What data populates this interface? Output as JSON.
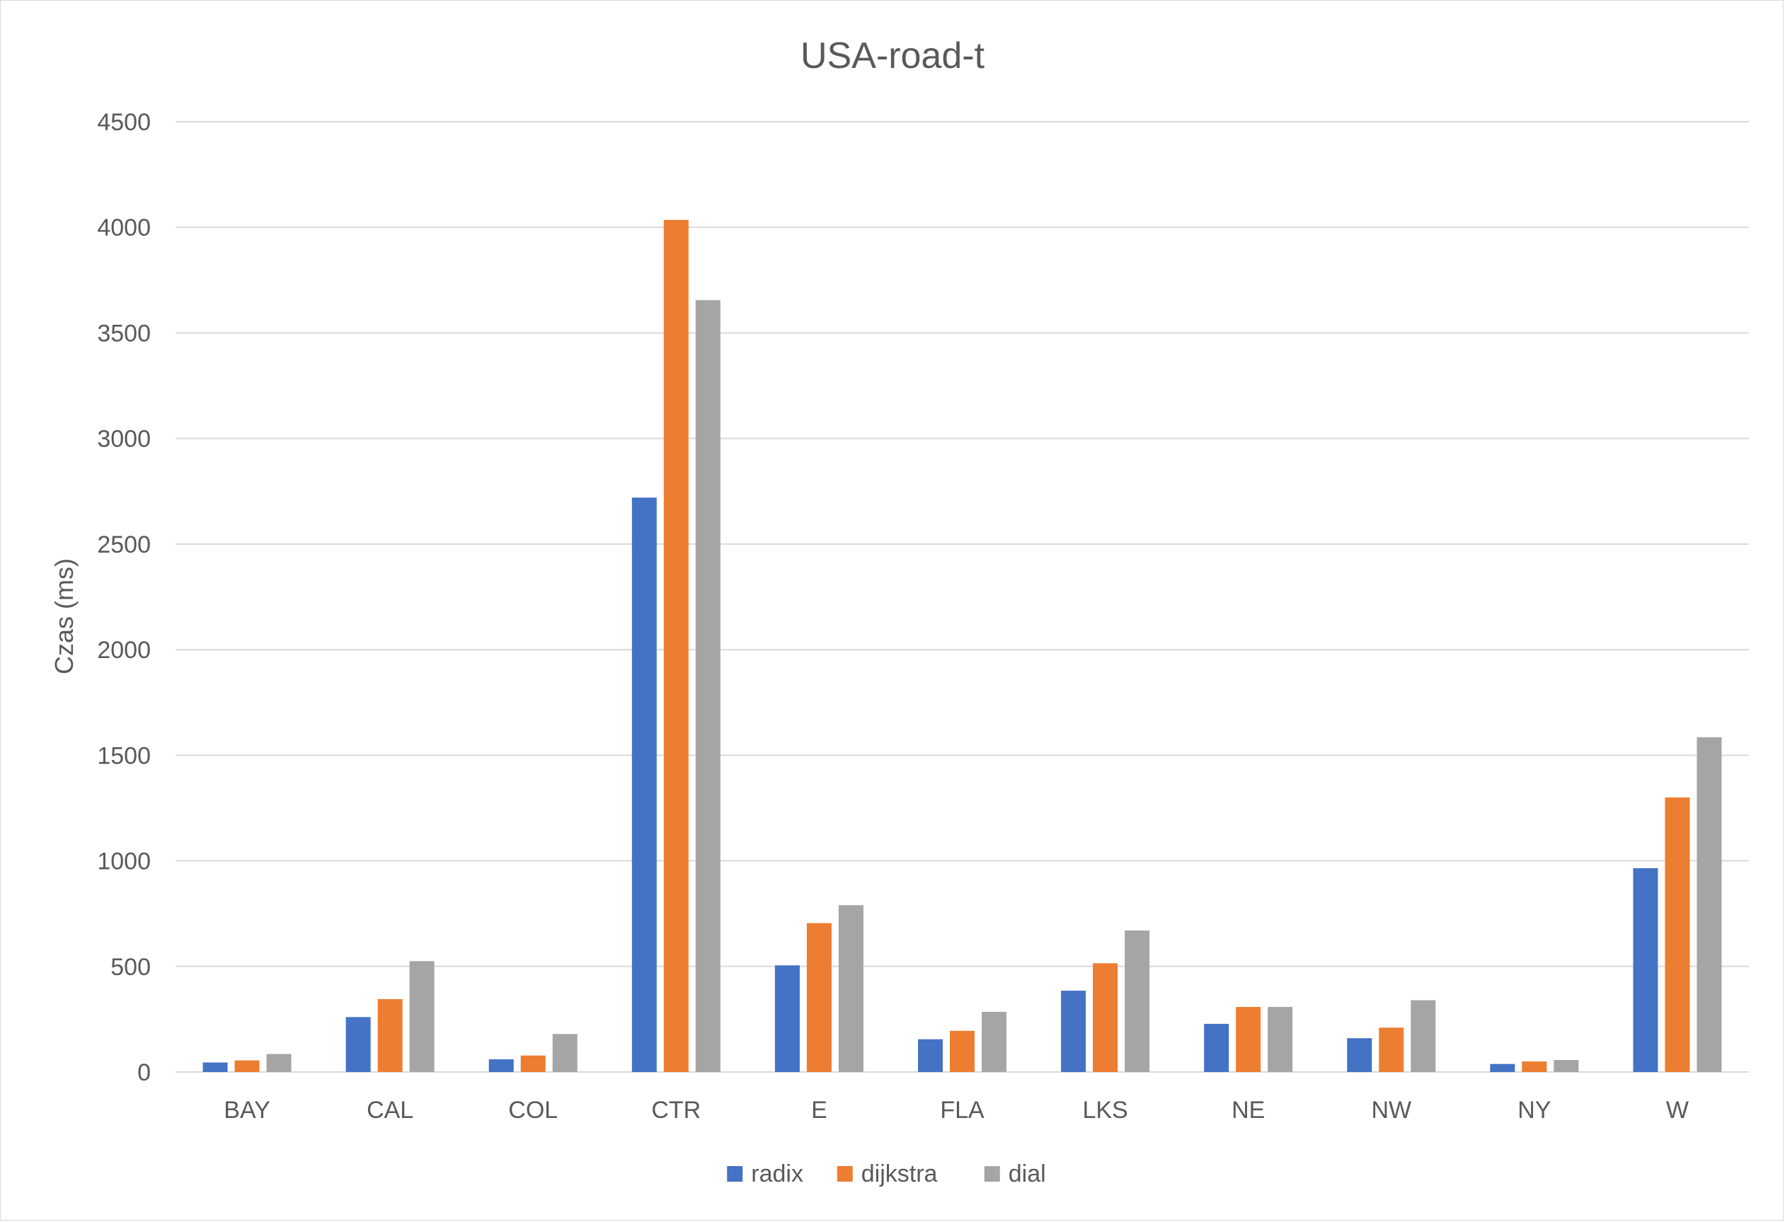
{
  "chart_data": {
    "type": "bar",
    "title": "USA-road-t",
    "xlabel": "",
    "ylabel": "Czas (ms)",
    "ylim": [
      0,
      4500
    ],
    "yticks": [
      0,
      500,
      1000,
      1500,
      2000,
      2500,
      3000,
      3500,
      4000,
      4500
    ],
    "grid": true,
    "legend_position": "bottom",
    "categories": [
      "BAY",
      "CAL",
      "COL",
      "CTR",
      "E",
      "FLA",
      "LKS",
      "NE",
      "NW",
      "NY",
      "W"
    ],
    "series": [
      {
        "name": "radix",
        "color": "#4472C4",
        "values": [
          45,
          260,
          60,
          2720,
          505,
          155,
          385,
          228,
          160,
          38,
          965
        ]
      },
      {
        "name": "dijkstra",
        "color": "#ED7D31",
        "values": [
          55,
          345,
          78,
          4035,
          705,
          195,
          515,
          308,
          210,
          50,
          1300
        ]
      },
      {
        "name": "dial",
        "color": "#A5A5A5",
        "values": [
          85,
          525,
          180,
          3655,
          790,
          285,
          670,
          308,
          340,
          57,
          1585
        ]
      }
    ]
  }
}
